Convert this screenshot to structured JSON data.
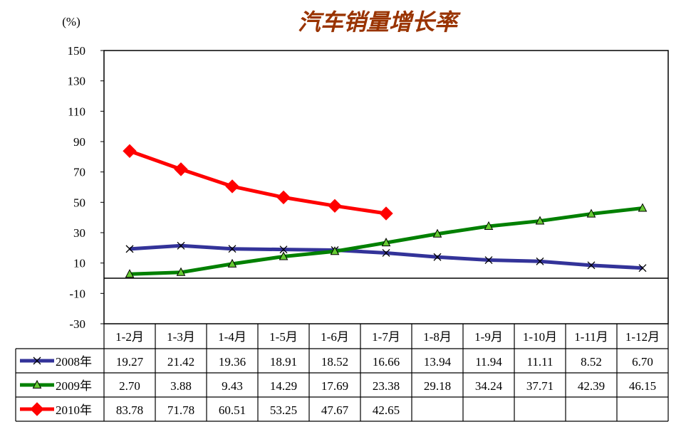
{
  "chart_data": {
    "type": "line",
    "title": "汽车销量增长率",
    "unit_label": "(%)",
    "ylim": [
      -30,
      150
    ],
    "yticks": [
      150,
      130,
      110,
      90,
      70,
      50,
      30,
      10,
      -10,
      -30
    ],
    "grid": false,
    "legend": "data-table-left",
    "categories": [
      "1-2月",
      "1-3月",
      "1-4月",
      "1-5月",
      "1-6月",
      "1-7月",
      "1-8月",
      "1-9月",
      "1-10月",
      "1-11月",
      "1-12月"
    ],
    "series": [
      {
        "name": "2008年",
        "color": "#333399",
        "marker": "x",
        "values": [
          19.27,
          21.42,
          19.36,
          18.91,
          18.52,
          16.66,
          13.94,
          11.94,
          11.11,
          8.52,
          6.7
        ],
        "labels": [
          "19.27",
          "21.42",
          "19.36",
          "18.91",
          "18.52",
          "16.66",
          "13.94",
          "11.94",
          "11.11",
          "8.52",
          "6.70"
        ]
      },
      {
        "name": "2009年",
        "color": "#008000",
        "marker": "triangle",
        "values": [
          2.7,
          3.88,
          9.43,
          14.29,
          17.69,
          23.38,
          29.18,
          34.24,
          37.71,
          42.39,
          46.15
        ],
        "labels": [
          "2.70",
          "3.88",
          "9.43",
          "14.29",
          "17.69",
          "23.38",
          "29.18",
          "34.24",
          "37.71",
          "42.39",
          "46.15"
        ]
      },
      {
        "name": "2010年",
        "color": "#ff0000",
        "marker": "diamond",
        "values": [
          83.78,
          71.78,
          60.51,
          53.25,
          47.67,
          42.65,
          null,
          null,
          null,
          null,
          null
        ],
        "labels": [
          "83.78",
          "71.78",
          "60.51",
          "53.25",
          "47.67",
          "42.65",
          "",
          "",
          "",
          "",
          ""
        ]
      }
    ]
  }
}
